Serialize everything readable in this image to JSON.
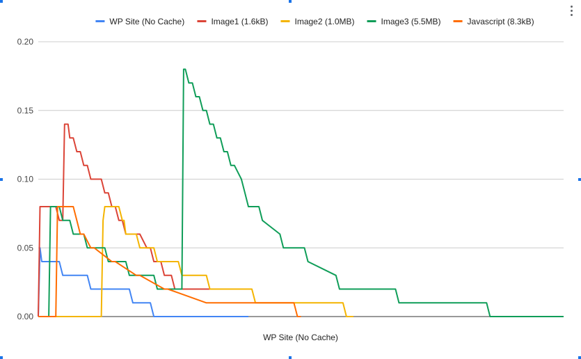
{
  "chart_data": {
    "type": "line",
    "title": "",
    "xlabel": "WP Site (No Cache)",
    "ylabel": "",
    "ylim": [
      0,
      0.2
    ],
    "yticks": [
      "0.00",
      "0.05",
      "0.10",
      "0.15",
      "0.20"
    ],
    "xlim": [
      0,
      150
    ],
    "grid": true,
    "legend_position": "top",
    "interpolation": "step",
    "series": [
      {
        "name": "WP Site (No Cache)",
        "color": "#4285f4",
        "x": [
          0,
          0.5,
          1,
          6,
          7,
          14,
          15,
          26,
          27,
          32,
          33,
          36,
          37,
          60
        ],
        "y": [
          0,
          0.05,
          0.04,
          0.04,
          0.03,
          0.03,
          0.02,
          0.02,
          0.01,
          0.01,
          0,
          0,
          0,
          0
        ]
      },
      {
        "name": "Image1 (1.6kB)",
        "color": "#db4437",
        "x": [
          0,
          0.5,
          4,
          5,
          6,
          7,
          7.5,
          8,
          8.5,
          9,
          10,
          11,
          12,
          13,
          14,
          15,
          16,
          18,
          19,
          20,
          21,
          22,
          23,
          24,
          25,
          27,
          29,
          31,
          32,
          33,
          34,
          35,
          36,
          37,
          38,
          39,
          40,
          42,
          45,
          60
        ],
        "y": [
          0,
          0.08,
          0.08,
          0.08,
          0.07,
          0.07,
          0.14,
          0.14,
          0.14,
          0.13,
          0.13,
          0.12,
          0.12,
          0.11,
          0.11,
          0.1,
          0.1,
          0.1,
          0.09,
          0.09,
          0.08,
          0.08,
          0.07,
          0.07,
          0.06,
          0.06,
          0.06,
          0.05,
          0.05,
          0.04,
          0.04,
          0.04,
          0.03,
          0.03,
          0.03,
          0.02,
          0.02,
          0.02,
          0.02,
          0.02
        ]
      },
      {
        "name": "Image2 (1.0MB)",
        "color": "#f4b400",
        "x": [
          0,
          18,
          18.5,
          19,
          23,
          24,
          24.5,
          25,
          28,
          29,
          33,
          34,
          40,
          41,
          48,
          49,
          61,
          62,
          87,
          88,
          90
        ],
        "y": [
          0,
          0,
          0.07,
          0.08,
          0.08,
          0.07,
          0.07,
          0.06,
          0.06,
          0.05,
          0.05,
          0.04,
          0.04,
          0.03,
          0.03,
          0.02,
          0.02,
          0.01,
          0.01,
          0,
          0
        ]
      },
      {
        "name": "Image3 (5.5MB)",
        "color": "#0f9d58",
        "x": [
          0,
          3,
          3.5,
          4,
          6,
          7,
          9,
          10,
          13,
          14,
          19,
          20,
          25,
          26,
          33,
          34,
          41,
          41.5,
          42,
          43,
          44,
          45,
          46,
          47,
          48,
          49,
          50,
          51,
          52,
          53,
          54,
          55,
          56,
          58,
          59,
          60,
          63,
          64,
          69,
          70,
          76,
          77,
          85,
          86,
          102,
          103,
          128,
          129,
          150
        ],
        "y": [
          0,
          0,
          0.08,
          0.08,
          0.08,
          0.07,
          0.07,
          0.06,
          0.06,
          0.05,
          0.05,
          0.04,
          0.04,
          0.03,
          0.03,
          0.02,
          0.02,
          0.18,
          0.18,
          0.17,
          0.17,
          0.16,
          0.16,
          0.15,
          0.15,
          0.14,
          0.14,
          0.13,
          0.13,
          0.12,
          0.12,
          0.11,
          0.11,
          0.1,
          0.09,
          0.08,
          0.08,
          0.07,
          0.06,
          0.05,
          0.05,
          0.04,
          0.03,
          0.02,
          0.02,
          0.01,
          0.01,
          0,
          0
        ]
      },
      {
        "name": "Javascript (8.3kB)",
        "color": "#ff6d00",
        "x": [
          0,
          5,
          5.5,
          6,
          10,
          11,
          12,
          13,
          15,
          16,
          21,
          22,
          28,
          29,
          36,
          37,
          48,
          49,
          73,
          74,
          75
        ],
        "y": [
          0,
          0,
          0.08,
          0.08,
          0.08,
          0.07,
          0.06,
          0.06,
          0.05,
          0.05,
          0.04,
          0.04,
          0.03,
          0.03,
          0.02,
          0.02,
          0.01,
          0.01,
          0.01,
          0,
          0
        ]
      }
    ]
  }
}
